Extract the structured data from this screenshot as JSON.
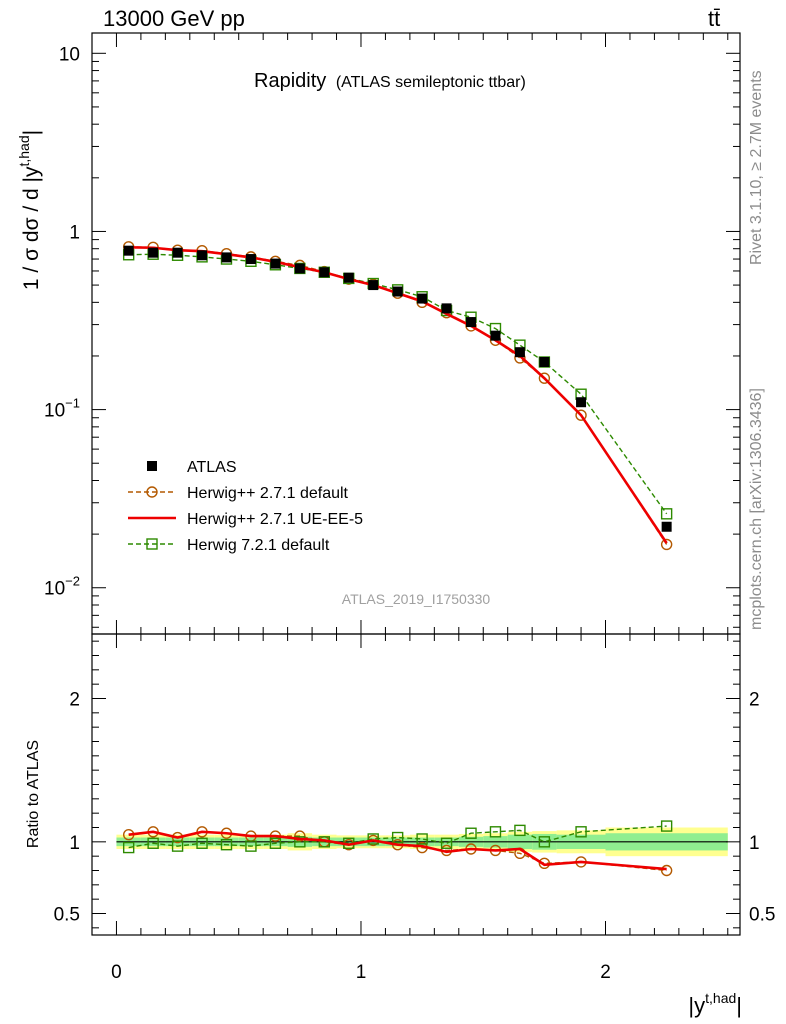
{
  "header": {
    "left": "13000 GeV pp",
    "right": "tt̄"
  },
  "side_labels": {
    "top": "Rivet 3.1.10, ≥ 2.7M events",
    "bottom": "mcplots.cern.ch [arXiv:1306.3436]"
  },
  "colors": {
    "data": "#000000",
    "herwigpp_default": "#b35900",
    "herwigpp_ueee5": "#ee0000",
    "herwig7_default": "#2d8a00",
    "band_outer": "#ffff90",
    "band_inner": "#90ee90",
    "watermark": "#a0a0a0"
  },
  "chart_data": [
    {
      "type": "scatter",
      "title": "Rapidity",
      "subtitle": "(ATLAS semileptonic ttbar)",
      "analysis_tag": "ATLAS_2019_I1750330",
      "xlabel": "|y^{t,had}|",
      "ylabel": "1 / σ dσ / d |y^{t,had}|",
      "yscale": "log",
      "xlim": [
        -0.1,
        2.55
      ],
      "ylim": [
        0.0055,
        13
      ],
      "y_ticks": [
        {
          "value": 0.01,
          "base": "10",
          "exp": "−2"
        },
        {
          "value": 0.1,
          "base": "10",
          "exp": "−1"
        },
        {
          "value": 1,
          "base": "1",
          "exp": ""
        },
        {
          "value": 10,
          "base": "10",
          "exp": ""
        }
      ],
      "legend_position": "lower-left",
      "x": [
        0.05,
        0.15,
        0.25,
        0.35,
        0.45,
        0.55,
        0.65,
        0.75,
        0.85,
        0.95,
        1.05,
        1.15,
        1.25,
        1.35,
        1.45,
        1.55,
        1.65,
        1.75,
        1.9,
        2.25
      ],
      "series": [
        {
          "name": "ATLAS",
          "style": "data",
          "values": [
            0.78,
            0.76,
            0.76,
            0.735,
            0.715,
            0.7,
            0.66,
            0.62,
            0.59,
            0.55,
            0.5,
            0.46,
            0.42,
            0.37,
            0.31,
            0.26,
            0.21,
            0.185,
            0.11,
            0.022
          ]
        },
        {
          "name": "Herwig++ 2.7.1 default",
          "style": "dashed-circle",
          "values": [
            0.82,
            0.815,
            0.785,
            0.78,
            0.75,
            0.72,
            0.68,
            0.645,
            0.595,
            0.54,
            0.505,
            0.45,
            0.4,
            0.35,
            0.295,
            0.245,
            0.195,
            0.15,
            0.093,
            0.0175
          ]
        },
        {
          "name": "Herwig++ 2.7.1 UE-EE-5",
          "style": "solid",
          "values": [
            0.815,
            0.81,
            0.785,
            0.775,
            0.745,
            0.715,
            0.675,
            0.63,
            0.59,
            0.54,
            0.5,
            0.45,
            0.405,
            0.345,
            0.295,
            0.245,
            0.2,
            0.15,
            0.093,
            0.0178
          ]
        },
        {
          "name": "Herwig 7.2.1 default",
          "style": "dashed-square",
          "values": [
            0.74,
            0.745,
            0.735,
            0.72,
            0.7,
            0.68,
            0.65,
            0.62,
            0.59,
            0.545,
            0.51,
            0.47,
            0.43,
            0.36,
            0.33,
            0.285,
            0.23,
            0.185,
            0.122,
            0.026
          ]
        }
      ]
    },
    {
      "type": "line",
      "ylabel": "Ratio to ATLAS",
      "xlabel": "|y^{t,had}|",
      "xlim": [
        -0.1,
        2.55
      ],
      "ylim": [
        0.35,
        2.45
      ],
      "x_ticks": [
        "0",
        "1",
        "2"
      ],
      "y_ticks": [
        "0.5",
        "1",
        "2"
      ],
      "bins": [
        {
          "lo": 0.0,
          "hi": 0.1,
          "inner": 0.03,
          "outer": 0.05
        },
        {
          "lo": 0.1,
          "hi": 0.2,
          "inner": 0.03,
          "outer": 0.05
        },
        {
          "lo": 0.2,
          "hi": 0.3,
          "inner": 0.03,
          "outer": 0.05
        },
        {
          "lo": 0.3,
          "hi": 0.4,
          "inner": 0.03,
          "outer": 0.05
        },
        {
          "lo": 0.4,
          "hi": 0.5,
          "inner": 0.03,
          "outer": 0.05
        },
        {
          "lo": 0.5,
          "hi": 0.6,
          "inner": 0.03,
          "outer": 0.05
        },
        {
          "lo": 0.6,
          "hi": 0.7,
          "inner": 0.03,
          "outer": 0.05
        },
        {
          "lo": 0.7,
          "hi": 0.8,
          "inner": 0.035,
          "outer": 0.06
        },
        {
          "lo": 0.8,
          "hi": 0.9,
          "inner": 0.03,
          "outer": 0.05
        },
        {
          "lo": 0.9,
          "hi": 1.0,
          "inner": 0.03,
          "outer": 0.045
        },
        {
          "lo": 1.0,
          "hi": 1.1,
          "inner": 0.03,
          "outer": 0.045
        },
        {
          "lo": 1.1,
          "hi": 1.2,
          "inner": 0.03,
          "outer": 0.045
        },
        {
          "lo": 1.2,
          "hi": 1.3,
          "inner": 0.03,
          "outer": 0.05
        },
        {
          "lo": 1.3,
          "hi": 1.4,
          "inner": 0.03,
          "outer": 0.05
        },
        {
          "lo": 1.4,
          "hi": 1.5,
          "inner": 0.035,
          "outer": 0.055
        },
        {
          "lo": 1.5,
          "hi": 1.6,
          "inner": 0.04,
          "outer": 0.06
        },
        {
          "lo": 1.6,
          "hi": 1.7,
          "inner": 0.05,
          "outer": 0.07
        },
        {
          "lo": 1.7,
          "hi": 1.8,
          "inner": 0.055,
          "outer": 0.075
        },
        {
          "lo": 1.8,
          "hi": 2.0,
          "inner": 0.05,
          "outer": 0.08
        },
        {
          "lo": 2.0,
          "hi": 2.5,
          "inner": 0.06,
          "outer": 0.1
        }
      ],
      "series": [
        {
          "name": "Herwig++ 2.7.1 default",
          "values": [
            1.05,
            1.07,
            1.03,
            1.07,
            1.06,
            1.04,
            1.04,
            1.04,
            1.0,
            0.98,
            1.01,
            0.98,
            0.96,
            0.94,
            0.95,
            0.94,
            0.92,
            0.85,
            0.86,
            0.8
          ]
        },
        {
          "name": "Herwig++ 2.7.1 UE-EE-5",
          "values": [
            1.05,
            1.07,
            1.03,
            1.07,
            1.06,
            1.04,
            1.04,
            1.02,
            1.01,
            0.98,
            1.01,
            0.98,
            0.97,
            0.93,
            0.95,
            0.94,
            0.95,
            0.84,
            0.86,
            0.81
          ]
        },
        {
          "name": "Herwig 7.2.1 default",
          "values": [
            0.96,
            0.99,
            0.97,
            0.99,
            0.98,
            0.97,
            0.99,
            1.0,
            1.0,
            0.99,
            1.02,
            1.03,
            1.02,
            0.99,
            1.06,
            1.07,
            1.08,
            1.0,
            1.07,
            1.11
          ]
        }
      ]
    }
  ]
}
